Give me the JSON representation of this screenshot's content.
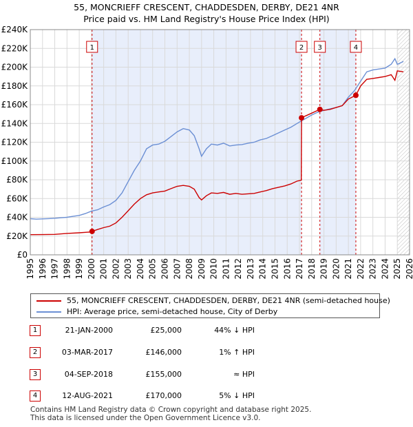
{
  "title_line1": "55, MONCRIEFF CRESCENT, CHADDESDEN, DERBY, DE21 4NR",
  "title_line2": "Price paid vs. HM Land Registry's House Price Index (HPI)",
  "chart_data": {
    "type": "line",
    "x_ticks": [
      "1995",
      "1996",
      "1997",
      "1998",
      "1999",
      "2000",
      "2001",
      "2002",
      "2003",
      "2004",
      "2005",
      "2006",
      "2007",
      "2008",
      "2009",
      "2010",
      "2011",
      "2012",
      "2013",
      "2014",
      "2015",
      "2016",
      "2017",
      "2018",
      "2019",
      "2020",
      "2021",
      "2022",
      "2023",
      "2024",
      "2025",
      "2026"
    ],
    "y_ticks": [
      "£0",
      "£20K",
      "£40K",
      "£60K",
      "£80K",
      "£100K",
      "£120K",
      "£140K",
      "£160K",
      "£180K",
      "£200K",
      "£220K",
      "£240K"
    ],
    "xlim": [
      1995,
      2026
    ],
    "ylim": [
      0,
      240000
    ],
    "grid": true,
    "series": [
      {
        "name": "55, MONCRIEFF CRESCENT, CHADDESDEN, DERBY, DE21 4NR (semi-detached house)",
        "color": "#cc0000",
        "points": [
          [
            1995.0,
            21500
          ],
          [
            1996.0,
            21600
          ],
          [
            1997.0,
            21800
          ],
          [
            1998.0,
            22800
          ],
          [
            1999.0,
            23500
          ],
          [
            1999.8,
            24200
          ],
          [
            2000.05,
            25000
          ],
          [
            2000.5,
            27000
          ],
          [
            2001.0,
            29000
          ],
          [
            2001.5,
            30500
          ],
          [
            2002.0,
            34000
          ],
          [
            2002.5,
            40000
          ],
          [
            2003.0,
            47000
          ],
          [
            2003.5,
            54000
          ],
          [
            2004.0,
            60000
          ],
          [
            2004.5,
            64000
          ],
          [
            2005.0,
            66000
          ],
          [
            2005.5,
            67000
          ],
          [
            2006.0,
            68000
          ],
          [
            2006.5,
            70500
          ],
          [
            2007.0,
            73000
          ],
          [
            2007.5,
            74000
          ],
          [
            2008.0,
            73000
          ],
          [
            2008.4,
            70000
          ],
          [
            2008.8,
            61000
          ],
          [
            2009.0,
            58500
          ],
          [
            2009.4,
            63000
          ],
          [
            2009.8,
            66000
          ],
          [
            2010.3,
            65500
          ],
          [
            2010.8,
            66500
          ],
          [
            2011.3,
            64500
          ],
          [
            2011.8,
            65500
          ],
          [
            2012.3,
            64500
          ],
          [
            2012.8,
            65000
          ],
          [
            2013.3,
            65500
          ],
          [
            2013.8,
            67000
          ],
          [
            2014.3,
            68500
          ],
          [
            2014.8,
            70500
          ],
          [
            2015.3,
            72000
          ],
          [
            2015.8,
            73500
          ],
          [
            2016.3,
            75500
          ],
          [
            2016.8,
            78500
          ],
          [
            2017.15,
            79500
          ],
          [
            2017.17,
            146000
          ],
          [
            2017.5,
            148000
          ],
          [
            2018.0,
            151000
          ],
          [
            2018.67,
            155000
          ],
          [
            2019.0,
            154000
          ],
          [
            2019.5,
            155000
          ],
          [
            2020.0,
            157000
          ],
          [
            2020.5,
            159000
          ],
          [
            2021.0,
            166000
          ],
          [
            2021.61,
            170000
          ],
          [
            2022.0,
            180000
          ],
          [
            2022.5,
            187000
          ],
          [
            2023.0,
            188000
          ],
          [
            2023.5,
            189000
          ],
          [
            2024.0,
            190000
          ],
          [
            2024.5,
            192000
          ],
          [
            2024.8,
            186000
          ],
          [
            2025.0,
            196000
          ],
          [
            2025.5,
            195000
          ]
        ]
      },
      {
        "name": "HPI: Average price, semi-detached house, City of Derby",
        "color": "#6b8fd4",
        "points": [
          [
            1995.0,
            38500
          ],
          [
            1995.5,
            38000
          ],
          [
            1996.0,
            38300
          ],
          [
            1996.5,
            38600
          ],
          [
            1997.0,
            39000
          ],
          [
            1997.5,
            39500
          ],
          [
            1998.0,
            40000
          ],
          [
            1998.5,
            41000
          ],
          [
            1999.0,
            42000
          ],
          [
            1999.5,
            44000
          ],
          [
            2000.0,
            46500
          ],
          [
            2000.5,
            48000
          ],
          [
            2001.0,
            51000
          ],
          [
            2001.5,
            53500
          ],
          [
            2002.0,
            58000
          ],
          [
            2002.5,
            66000
          ],
          [
            2003.0,
            78000
          ],
          [
            2003.5,
            90000
          ],
          [
            2004.0,
            100000
          ],
          [
            2004.5,
            113000
          ],
          [
            2005.0,
            117000
          ],
          [
            2005.5,
            118000
          ],
          [
            2006.0,
            121000
          ],
          [
            2006.5,
            126000
          ],
          [
            2007.0,
            131000
          ],
          [
            2007.5,
            134500
          ],
          [
            2008.0,
            133000
          ],
          [
            2008.4,
            127000
          ],
          [
            2008.8,
            113000
          ],
          [
            2009.0,
            105000
          ],
          [
            2009.4,
            113000
          ],
          [
            2009.8,
            118000
          ],
          [
            2010.3,
            117000
          ],
          [
            2010.8,
            119000
          ],
          [
            2011.3,
            116000
          ],
          [
            2011.8,
            117000
          ],
          [
            2012.3,
            117500
          ],
          [
            2012.8,
            119000
          ],
          [
            2013.3,
            120000
          ],
          [
            2013.8,
            122500
          ],
          [
            2014.3,
            124000
          ],
          [
            2014.8,
            127000
          ],
          [
            2015.3,
            130000
          ],
          [
            2015.8,
            133000
          ],
          [
            2016.3,
            136000
          ],
          [
            2016.8,
            140000
          ],
          [
            2017.2,
            143000
          ],
          [
            2017.6,
            146000
          ],
          [
            2018.0,
            149000
          ],
          [
            2018.5,
            152000
          ],
          [
            2019.0,
            154000
          ],
          [
            2019.5,
            155500
          ],
          [
            2020.0,
            157000
          ],
          [
            2020.5,
            159000
          ],
          [
            2021.0,
            168000
          ],
          [
            2021.5,
            175000
          ],
          [
            2022.0,
            185000
          ],
          [
            2022.5,
            195000
          ],
          [
            2023.0,
            197000
          ],
          [
            2023.5,
            198000
          ],
          [
            2024.0,
            199000
          ],
          [
            2024.5,
            203000
          ],
          [
            2024.8,
            209000
          ],
          [
            2025.0,
            203000
          ],
          [
            2025.5,
            206000
          ]
        ]
      }
    ],
    "sales": [
      {
        "num": "1",
        "year": 2000.05,
        "price": 25000
      },
      {
        "num": "2",
        "year": 2017.17,
        "price": 146000
      },
      {
        "num": "3",
        "year": 2018.67,
        "price": 155000
      },
      {
        "num": "4",
        "year": 2021.61,
        "price": 170000
      }
    ],
    "shaded_ranges": [
      [
        2000.05,
        2017.17
      ],
      [
        2018.67,
        2021.61
      ]
    ],
    "hatched_range": [
      2025.0,
      2026.0
    ]
  },
  "legend": {
    "property_label": "55, MONCRIEFF CRESCENT, CHADDESDEN, DERBY, DE21 4NR (semi-detached house)",
    "hpi_label": "HPI: Average price, semi-detached house, City of Derby"
  },
  "sales_table": [
    {
      "num": "1",
      "date": "21-JAN-2000",
      "price": "£25,000",
      "hpi": "44% ↓ HPI"
    },
    {
      "num": "2",
      "date": "03-MAR-2017",
      "price": "£146,000",
      "hpi": "1% ↑ HPI"
    },
    {
      "num": "3",
      "date": "04-SEP-2018",
      "price": "£155,000",
      "hpi": "≈ HPI"
    },
    {
      "num": "4",
      "date": "12-AUG-2021",
      "price": "£170,000",
      "hpi": "5% ↓ HPI"
    }
  ],
  "footer_line1": "Contains HM Land Registry data © Crown copyright and database right 2025.",
  "footer_line2": "This data is licensed under the Open Government Licence v3.0.",
  "colors": {
    "property": "#cc0000",
    "hpi": "#6b8fd4",
    "shade": "#e8eefb",
    "grid": "#d9d9d9"
  }
}
